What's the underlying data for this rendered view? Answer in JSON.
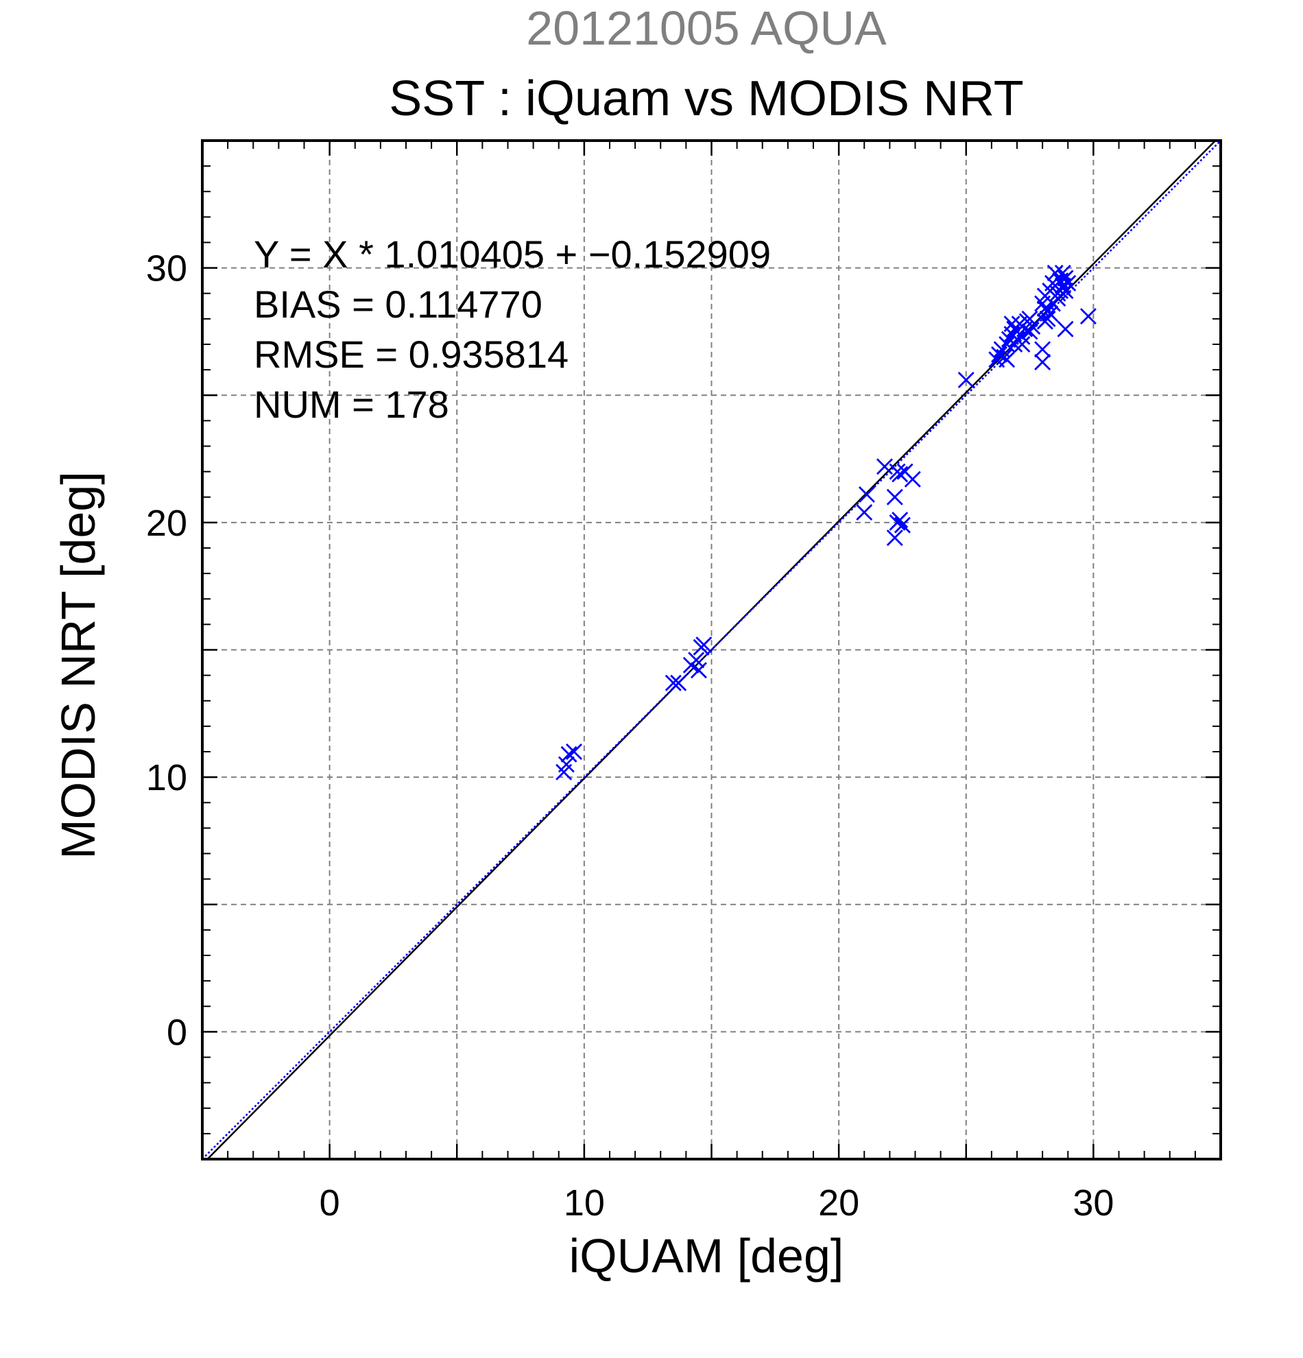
{
  "header": {
    "date_title": "20121005 AQUA",
    "main_title": "SST : iQuam vs MODIS NRT"
  },
  "stats": {
    "equation": "Y = X * 1.010405 + −0.152909",
    "bias": "BIAS = 0.114770",
    "rmse": "RMSE = 0.935814",
    "num": "NUM = 178"
  },
  "chart_data": {
    "type": "scatter",
    "title": "SST : iQuam vs MODIS NRT",
    "subtitle": "20121005 AQUA",
    "xlabel": "iQUAM [deg]",
    "ylabel": "MODIS NRT [deg]",
    "xlim": [
      -5,
      35
    ],
    "ylim": [
      -5,
      35
    ],
    "x_ticks": [
      0,
      10,
      20,
      30
    ],
    "y_ticks": [
      0,
      10,
      20,
      30
    ],
    "x_tick_labels": [
      "0",
      "10",
      "20",
      "30"
    ],
    "y_tick_labels": [
      "0",
      "10",
      "20",
      "30"
    ],
    "grid": true,
    "marker": "x",
    "color": "#0000ff",
    "fit_line": {
      "slope": 1.010405,
      "intercept": -0.152909,
      "color": "#000000"
    },
    "identity_line": {
      "slope": 1,
      "intercept": 0,
      "color": "#0000ff"
    },
    "series": [
      {
        "points": [
          [
            9.2,
            10.2
          ],
          [
            9.3,
            10.5
          ],
          [
            9.4,
            10.9
          ],
          [
            9.6,
            11.0
          ],
          [
            13.5,
            13.7
          ],
          [
            13.7,
            13.7
          ],
          [
            14.2,
            14.4
          ],
          [
            14.5,
            14.2
          ],
          [
            14.4,
            14.6
          ],
          [
            14.6,
            15.1
          ],
          [
            14.7,
            15.2
          ],
          [
            21.0,
            20.4
          ],
          [
            21.1,
            21.1
          ],
          [
            21.8,
            22.2
          ],
          [
            22.3,
            22.0
          ],
          [
            22.2,
            21.0
          ],
          [
            22.3,
            20.0
          ],
          [
            22.5,
            19.9
          ],
          [
            22.2,
            19.4
          ],
          [
            22.4,
            20.1
          ],
          [
            22.6,
            22.0
          ],
          [
            22.9,
            21.7
          ],
          [
            22.4,
            21.9
          ],
          [
            25.0,
            25.6
          ],
          [
            26.2,
            26.4
          ],
          [
            26.3,
            26.6
          ],
          [
            26.5,
            26.5
          ],
          [
            26.4,
            26.8
          ],
          [
            26.6,
            27.0
          ],
          [
            26.7,
            27.2
          ],
          [
            26.8,
            27.4
          ],
          [
            26.9,
            27.0
          ],
          [
            27.0,
            27.5
          ],
          [
            27.1,
            27.8
          ],
          [
            27.2,
            27.3
          ],
          [
            27.3,
            27.6
          ],
          [
            27.4,
            27.9
          ],
          [
            26.8,
            27.8
          ],
          [
            27.5,
            27.5
          ],
          [
            27.6,
            27.7
          ],
          [
            27.0,
            27.2
          ],
          [
            26.6,
            26.4
          ],
          [
            26.9,
            27.6
          ],
          [
            27.2,
            27.0
          ],
          [
            27.5,
            28.0
          ],
          [
            28.0,
            26.8
          ],
          [
            28.0,
            26.3
          ],
          [
            28.1,
            27.9
          ],
          [
            28.2,
            28.3
          ],
          [
            28.0,
            28.6
          ],
          [
            28.1,
            28.9
          ],
          [
            28.3,
            29.1
          ],
          [
            28.4,
            28.6
          ],
          [
            28.5,
            29.3
          ],
          [
            28.6,
            29.0
          ],
          [
            28.7,
            29.5
          ],
          [
            28.8,
            29.3
          ],
          [
            28.9,
            29.6
          ],
          [
            29.0,
            29.4
          ],
          [
            28.5,
            29.8
          ],
          [
            28.3,
            28.2
          ],
          [
            28.6,
            28.8
          ],
          [
            28.9,
            27.6
          ],
          [
            29.8,
            28.1
          ],
          [
            28.2,
            28.0
          ],
          [
            28.7,
            29.1
          ],
          [
            28.4,
            29.4
          ],
          [
            28.8,
            29.8
          ],
          [
            28.1,
            28.4
          ],
          [
            28.9,
            29.1
          ]
        ]
      }
    ]
  }
}
